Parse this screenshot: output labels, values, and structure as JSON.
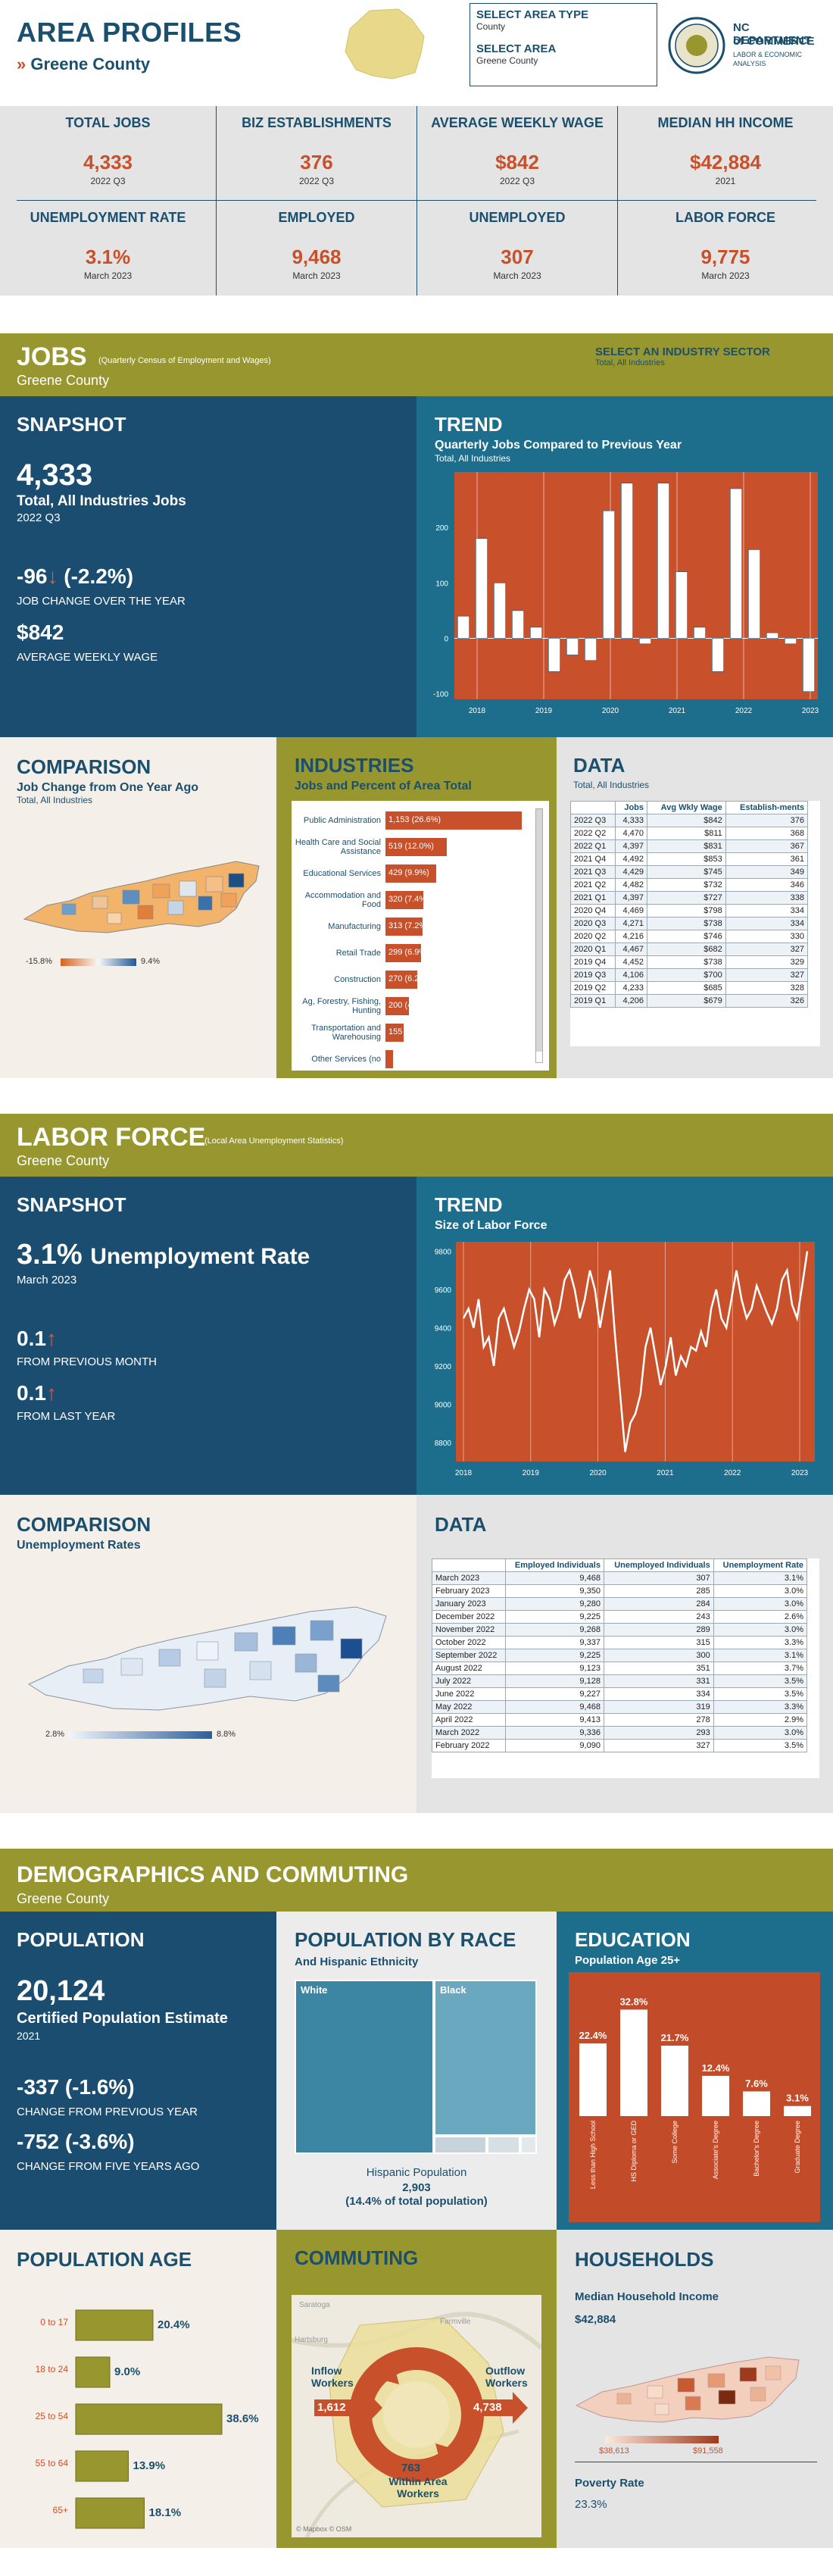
{
  "header": {
    "title": "AREA PROFILES",
    "county": "Greene County",
    "area_type_label": "SELECT AREA TYPE",
    "area_type_value": "County",
    "area_label": "SELECT AREA",
    "area_value": "Greene County",
    "logo_line1": "NC DEPARTMENT",
    "logo_line2": "of COMMERCE",
    "logo_line3": "LABOR & ECONOMIC",
    "logo_line4": "ANALYSIS"
  },
  "kpis": [
    {
      "label": "TOTAL JOBS",
      "value": "4,333",
      "sub": "2022 Q3"
    },
    {
      "label": "BIZ ESTABLISHMENTS",
      "value": "376",
      "sub": "2022 Q3"
    },
    {
      "label": "AVERAGE WEEKLY WAGE",
      "value": "$842",
      "sub": "2022 Q3"
    },
    {
      "label": "MEDIAN HH INCOME",
      "value": "$42,884",
      "sub": "2021"
    },
    {
      "label": "UNEMPLOYMENT RATE",
      "value": "3.1%",
      "sub": "March 2023"
    },
    {
      "label": "EMPLOYED",
      "value": "9,468",
      "sub": "March 2023"
    },
    {
      "label": "UNEMPLOYED",
      "value": "307",
      "sub": "March 2023"
    },
    {
      "label": "LABOR FORCE",
      "value": "9,775",
      "sub": "March 2023"
    }
  ],
  "jobs": {
    "title": "JOBS",
    "title_note": "(Quarterly Census of Employment and Wages)",
    "county": "Greene County",
    "sector_label": "SELECT AN INDUSTRY SECTOR",
    "sector_value": "Total, All Industries",
    "snapshot": {
      "heading": "SNAPSHOT",
      "jobs_value": "4,333",
      "jobs_label": "Total, All Industries Jobs",
      "jobs_period": "2022 Q3",
      "change_value": "-96",
      "change_pct": "(-2.2%)",
      "change_label": "JOB CHANGE OVER THE YEAR",
      "wage_value": "$842",
      "wage_label": "AVERAGE WEEKLY WAGE"
    },
    "trend": {
      "heading": "TREND",
      "subtitle": "Quarterly Jobs Compared to Previous Year",
      "note": "Total, All Industries"
    },
    "comparison": {
      "heading": "COMPARISON",
      "subtitle": "Job Change from One Year Ago",
      "note": "Total, All Industries",
      "legend_min": "-15.8%",
      "legend_max": "9.4%"
    },
    "industries": {
      "heading": "INDUSTRIES",
      "subtitle": "Jobs and Percent of Area Total",
      "items": [
        {
          "name": "Public Administration",
          "label": "1,153 (26.6%)",
          "value": 1153
        },
        {
          "name": "Health Care and Social Assistance",
          "label": "519 (12.0%)",
          "value": 519
        },
        {
          "name": "Educational Services",
          "label": "429 (9.9%)",
          "value": 429
        },
        {
          "name": "Accommodation and Food",
          "label": "320 (7.4%)",
          "value": 320
        },
        {
          "name": "Manufacturing",
          "label": "313 (7.2%)",
          "value": 313
        },
        {
          "name": "Retail Trade",
          "label": "299 (6.9%)",
          "value": 299
        },
        {
          "name": "Construction",
          "label": "270 (6.2%)",
          "value": 270
        },
        {
          "name": "Ag, Forestry, Fishing, Hunting",
          "label": "200 (4.6%)",
          "value": 200
        },
        {
          "name": "Transportation and Warehousing",
          "label": "155 (3.6%)",
          "value": 155
        },
        {
          "name": "Other Services (no",
          "label": "",
          "value": 60
        }
      ]
    },
    "data": {
      "heading": "DATA",
      "note": "Total, All Industries",
      "columns": [
        "",
        "Jobs",
        "Avg Wkly Wage",
        "Establish-ments"
      ],
      "rows": [
        [
          "2022 Q3",
          "4,333",
          "$842",
          "376"
        ],
        [
          "2022 Q2",
          "4,470",
          "$811",
          "368"
        ],
        [
          "2022 Q1",
          "4,397",
          "$831",
          "367"
        ],
        [
          "2021 Q4",
          "4,492",
          "$853",
          "361"
        ],
        [
          "2021 Q3",
          "4,429",
          "$745",
          "349"
        ],
        [
          "2021 Q2",
          "4,482",
          "$732",
          "346"
        ],
        [
          "2021 Q1",
          "4,397",
          "$727",
          "338"
        ],
        [
          "2020 Q4",
          "4,469",
          "$798",
          "334"
        ],
        [
          "2020 Q3",
          "4,271",
          "$738",
          "334"
        ],
        [
          "2020 Q2",
          "4,216",
          "$746",
          "330"
        ],
        [
          "2020 Q1",
          "4,467",
          "$682",
          "327"
        ],
        [
          "2019 Q4",
          "4,452",
          "$738",
          "329"
        ],
        [
          "2019 Q3",
          "4,106",
          "$700",
          "327"
        ],
        [
          "2019 Q2",
          "4,233",
          "$685",
          "328"
        ],
        [
          "2019 Q1",
          "4,206",
          "$679",
          "326"
        ]
      ]
    }
  },
  "labor": {
    "title": "LABOR FORCE",
    "title_note": "(Local Area Unemployment Statistics)",
    "county": "Greene County",
    "snapshot": {
      "heading": "SNAPSHOT",
      "rate_value": "3.1%",
      "rate_label": "Unemployment Rate",
      "period": "March 2023",
      "month_change": "0.1",
      "month_label": "FROM PREVIOUS MONTH",
      "year_change": "0.1",
      "year_label": "FROM LAST YEAR"
    },
    "trend": {
      "heading": "TREND",
      "subtitle": "Size of Labor Force"
    },
    "comparison": {
      "heading": "COMPARISON",
      "subtitle": "Unemployment Rates",
      "legend_min": "2.8%",
      "legend_max": "8.8%"
    },
    "data": {
      "heading": "DATA",
      "columns": [
        "",
        "Employed Individuals",
        "Unemployed Individuals",
        "Unemployment Rate"
      ],
      "rows": [
        [
          "March 2023",
          "9,468",
          "307",
          "3.1%"
        ],
        [
          "February 2023",
          "9,350",
          "285",
          "3.0%"
        ],
        [
          "January 2023",
          "9,280",
          "284",
          "3.0%"
        ],
        [
          "December 2022",
          "9,225",
          "243",
          "2.6%"
        ],
        [
          "November 2022",
          "9,268",
          "289",
          "3.0%"
        ],
        [
          "October 2022",
          "9,337",
          "315",
          "3.3%"
        ],
        [
          "September 2022",
          "9,225",
          "300",
          "3.1%"
        ],
        [
          "August 2022",
          "9,123",
          "351",
          "3.7%"
        ],
        [
          "July 2022",
          "9,128",
          "331",
          "3.5%"
        ],
        [
          "June 2022",
          "9,227",
          "334",
          "3.5%"
        ],
        [
          "May 2022",
          "9,468",
          "319",
          "3.3%"
        ],
        [
          "April 2022",
          "9,413",
          "278",
          "2.9%"
        ],
        [
          "March 2022",
          "9,336",
          "293",
          "3.0%"
        ],
        [
          "February 2022",
          "9,090",
          "327",
          "3.5%"
        ]
      ]
    }
  },
  "demo": {
    "title": "DEMOGRAPHICS AND COMMUTING",
    "county": "Greene County",
    "population": {
      "heading": "POPULATION",
      "value": "20,124",
      "label": "Certified Population Estimate",
      "year": "2021",
      "change1_value": "-337 (-1.6%)",
      "change1_label": "CHANGE FROM PREVIOUS YEAR",
      "change2_value": "-752 (-3.6%)",
      "change2_label": "CHANGE FROM FIVE YEARS AGO"
    },
    "race": {
      "heading": "POPULATION BY RACE",
      "subtitle": "And Hispanic Ethnicity",
      "white_label": "White",
      "black_label": "Black",
      "hispanic_label": "Hispanic Population",
      "hispanic_value": "2,903",
      "hispanic_pct": "(14.4% of total population)"
    },
    "education": {
      "heading": "EDUCATION",
      "subtitle": "Population Age 25+",
      "bars": [
        {
          "label": "Less than High School",
          "pct": "22.4%",
          "value": 22.4
        },
        {
          "label": "HS Diploma or GED",
          "pct": "32.8%",
          "value": 32.8
        },
        {
          "label": "Some College",
          "pct": "21.7%",
          "value": 21.7
        },
        {
          "label": "Associate's Degree",
          "pct": "12.4%",
          "value": 12.4
        },
        {
          "label": "Bachelor's Degree",
          "pct": "7.6%",
          "value": 7.6
        },
        {
          "label": "Graduate Degree",
          "pct": "3.1%",
          "value": 3.1
        }
      ]
    },
    "age": {
      "heading": "POPULATION AGE",
      "bars": [
        {
          "label": "0 to 17",
          "pct": "20.4%",
          "value": 20.4
        },
        {
          "label": "18 to 24",
          "pct": "9.0%",
          "value": 9.0
        },
        {
          "label": "25 to 54",
          "pct": "38.6%",
          "value": 38.6
        },
        {
          "label": "55 to 64",
          "pct": "13.9%",
          "value": 13.9
        },
        {
          "label": "65+",
          "pct": "18.1%",
          "value": 18.1
        }
      ]
    },
    "commuting": {
      "heading": "COMMUTING",
      "inflow_label": "Inflow Workers",
      "inflow_value": "1,612",
      "outflow_label": "Outflow Workers",
      "outflow_value": "4,738",
      "within_value": "763",
      "within_label": "Within Area Workers",
      "map_credit": "© Mapbox © OSM",
      "place1": "Saratoga",
      "place2": "Farmville",
      "place3": "Hartsburg"
    },
    "households": {
      "heading": "HOUSEHOLDS",
      "income_label": "Median Household Income",
      "income_value": "$42,884",
      "legend_min": "$38,613",
      "legend_max": "$91,558",
      "poverty_label": "Poverty Rate",
      "poverty_value": "23.3%"
    }
  },
  "chart_data": [
    {
      "type": "bar",
      "title": "Quarterly Jobs Compared to Previous Year",
      "x": [
        "2017 Q4",
        "2018 Q1",
        "2018 Q2",
        "2018 Q3",
        "2018 Q4",
        "2019 Q1",
        "2019 Q2",
        "2019 Q3",
        "2019 Q4",
        "2020 Q1",
        "2020 Q2",
        "2020 Q3",
        "2020 Q4",
        "2021 Q1",
        "2021 Q2",
        "2021 Q3",
        "2021 Q4",
        "2022 Q1",
        "2022 Q2",
        "2022 Q3"
      ],
      "values": [
        40,
        180,
        100,
        50,
        20,
        -60,
        -30,
        -40,
        230,
        280,
        -10,
        280,
        120,
        20,
        -60,
        270,
        160,
        10,
        -10,
        -96
      ],
      "xlabels": [
        "2018",
        "2019",
        "2020",
        "2021",
        "2022",
        "2023"
      ],
      "ylim": [
        -110,
        300
      ],
      "yticks": [
        -100,
        0,
        100,
        200
      ]
    },
    {
      "type": "line",
      "title": "Size of Labor Force",
      "xlabels": [
        "2018",
        "2019",
        "2020",
        "2021",
        "2022",
        "2023"
      ],
      "values": [
        9450,
        9500,
        9400,
        9550,
        9300,
        9350,
        9200,
        9450,
        9500,
        9400,
        9300,
        9380,
        9500,
        9600,
        9550,
        9350,
        9600,
        9550,
        9420,
        9500,
        9650,
        9700,
        9600,
        9450,
        9550,
        9700,
        9600,
        9400,
        9550,
        9700,
        9350,
        9050,
        8750,
        8900,
        8950,
        9050,
        9300,
        9400,
        9250,
        9100,
        9200,
        9350,
        9150,
        9250,
        9200,
        9300,
        9280,
        9380,
        9300,
        9500,
        9600,
        9450,
        9400,
        9550,
        9700,
        9550,
        9450,
        9500,
        9620,
        9550,
        9480,
        9420,
        9500,
        9650,
        9700,
        9520,
        9450,
        9620,
        9800
      ],
      "ylim": [
        8700,
        9850
      ],
      "yticks": [
        8800,
        9000,
        9200,
        9400,
        9600,
        9800
      ]
    }
  ]
}
